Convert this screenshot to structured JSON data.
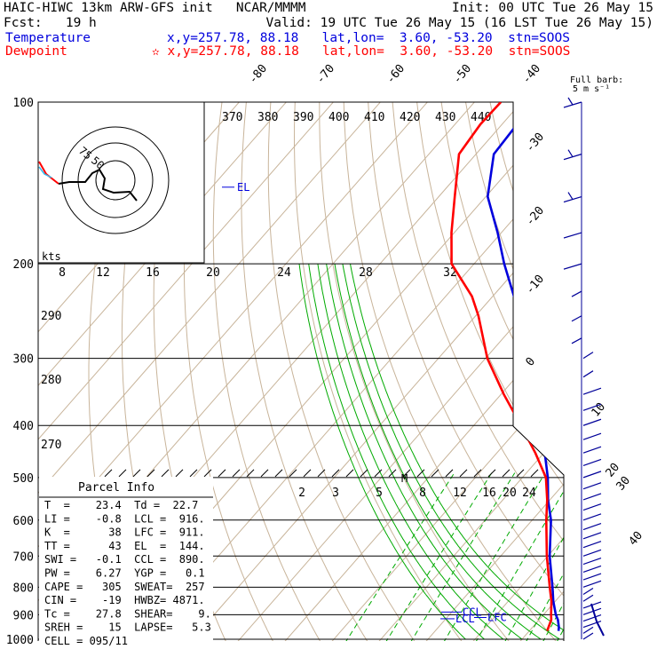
{
  "header": {
    "title": "HAIC-HIWC 13km ARW-GFS init   NCAR/MMMM",
    "init": "Init: 00 UTC Tue 26 May 15",
    "fcst": "Fcst:   19 h",
    "valid": "Valid: 19 UTC Tue 26 May 15 (16 LST Tue 26 May 15)",
    "temperature_label": "Temperature",
    "dewpoint_label": "Dewpoint",
    "temperature_loc": "x,y=257.78, 88.18   lat,lon=  3.60, -53.20  stn=SOOS",
    "dewpoint_loc": "✫ x,y=257.78, 88.18   lat,lon=  3.60, -53.20  stn=SOOS"
  },
  "barb_key": {
    "line1": "Full barb:",
    "line2": "5 m s⁻¹"
  },
  "hodograph": {
    "kts_label": "kts",
    "ring_labels": [
      "75",
      "50"
    ]
  },
  "parcel_info": {
    "title": "Parcel Info",
    "rows": [
      "T  =    23.4  Td =  22.7",
      "LI =    -0.8  LCL =  916.",
      "K  =      38  LFC =  911.",
      "TT =      43  EL  =  144.",
      "SWI =   -0.1  CCL =  890.",
      "PW =    6.27  YGP =   0.1",
      "CAPE =   305  SWEAT=  257",
      "CIN =    -19  HWBZ= 4871.",
      "Tc =    27.8  SHEAR=    9.",
      "SREH =    15  LAPSE=   5.3",
      "CELL = 095/11"
    ]
  },
  "levels": {
    "el": "EL",
    "lcl": "LCL",
    "lfc": "LFC",
    "ccl": "CCL",
    "m": "M"
  },
  "colors": {
    "temperature": "#0000dd",
    "dewpoint": "#ff0000",
    "isotherm": "#c8b49a",
    "mixing_ratio": "#00aa00",
    "barb": "#000099"
  },
  "chart_data": {
    "type": "line",
    "title": "",
    "xlabel": "",
    "ylabel": "",
    "y_scale": "log",
    "ylim": [
      1000,
      100
    ],
    "pressure_ticks": [
      "100",
      "200",
      "300",
      "400",
      "500",
      "600",
      "700",
      "800",
      "900",
      "1000"
    ],
    "isotherm_labels": [
      "-80",
      "-70",
      "-60",
      "-50",
      "-40",
      "-30",
      "-20",
      "-10",
      "0",
      "10",
      "20",
      "30",
      "40"
    ],
    "theta_labels": [
      "370",
      "380",
      "390",
      "400",
      "410",
      "420",
      "430",
      "440",
      "290",
      "280",
      "270"
    ],
    "mixing_ratio_labels_upper": [
      "8",
      "12",
      "16",
      "20",
      "24",
      "28",
      "32"
    ],
    "mixing_ratio_labels_lower": [
      "2",
      "3",
      "5",
      "8",
      "12",
      "16",
      "20",
      "24"
    ],
    "series": [
      {
        "name": "Temperature",
        "p": [
          965,
          950,
          920,
          900,
          850,
          800,
          700,
          600,
          550,
          500,
          450,
          400,
          350,
          300,
          250,
          200,
          175,
          150,
          125,
          110,
          100
        ],
        "t": [
          26.2,
          25.6,
          24.0,
          22.6,
          19.6,
          16.8,
          10.4,
          4.0,
          -0.4,
          -4.6,
          -9.8,
          -15.2,
          -21.8,
          -30.2,
          -40.6,
          -53.6,
          -60.8,
          -69.6,
          -76.2,
          -76.8,
          -76.0
        ]
      },
      {
        "name": "Dewpoint",
        "p": [
          965,
          950,
          920,
          900,
          850,
          800,
          700,
          600,
          550,
          500,
          450,
          400,
          350,
          300,
          250,
          230,
          200,
          175,
          150,
          125,
          110,
          100
        ],
        "t": [
          23.8,
          23.4,
          22.6,
          21.6,
          19.2,
          16.2,
          9.8,
          3.0,
          -0.6,
          -5.0,
          -11.8,
          -20.0,
          -29.4,
          -39.6,
          -49.4,
          -54.4,
          -64.8,
          -70.6,
          -76.6,
          -83.6,
          -84.6,
          -84.4
        ]
      }
    ],
    "wind_profile": [
      {
        "p": 1000,
        "spd": 5
      },
      {
        "p": 950,
        "spd": 10
      },
      {
        "p": 900,
        "spd": 10
      },
      {
        "p": 850,
        "spd": 5
      },
      {
        "p": 800,
        "spd": 10
      },
      {
        "p": 700,
        "spd": 10
      },
      {
        "p": 600,
        "spd": 10
      },
      {
        "p": 500,
        "spd": 10
      },
      {
        "p": 400,
        "spd": 10
      },
      {
        "p": 300,
        "spd": 5
      },
      {
        "p": 250,
        "spd": 5
      },
      {
        "p": 200,
        "spd": 10
      },
      {
        "p": 150,
        "spd": 20
      },
      {
        "p": 100,
        "spd": 15
      }
    ]
  }
}
